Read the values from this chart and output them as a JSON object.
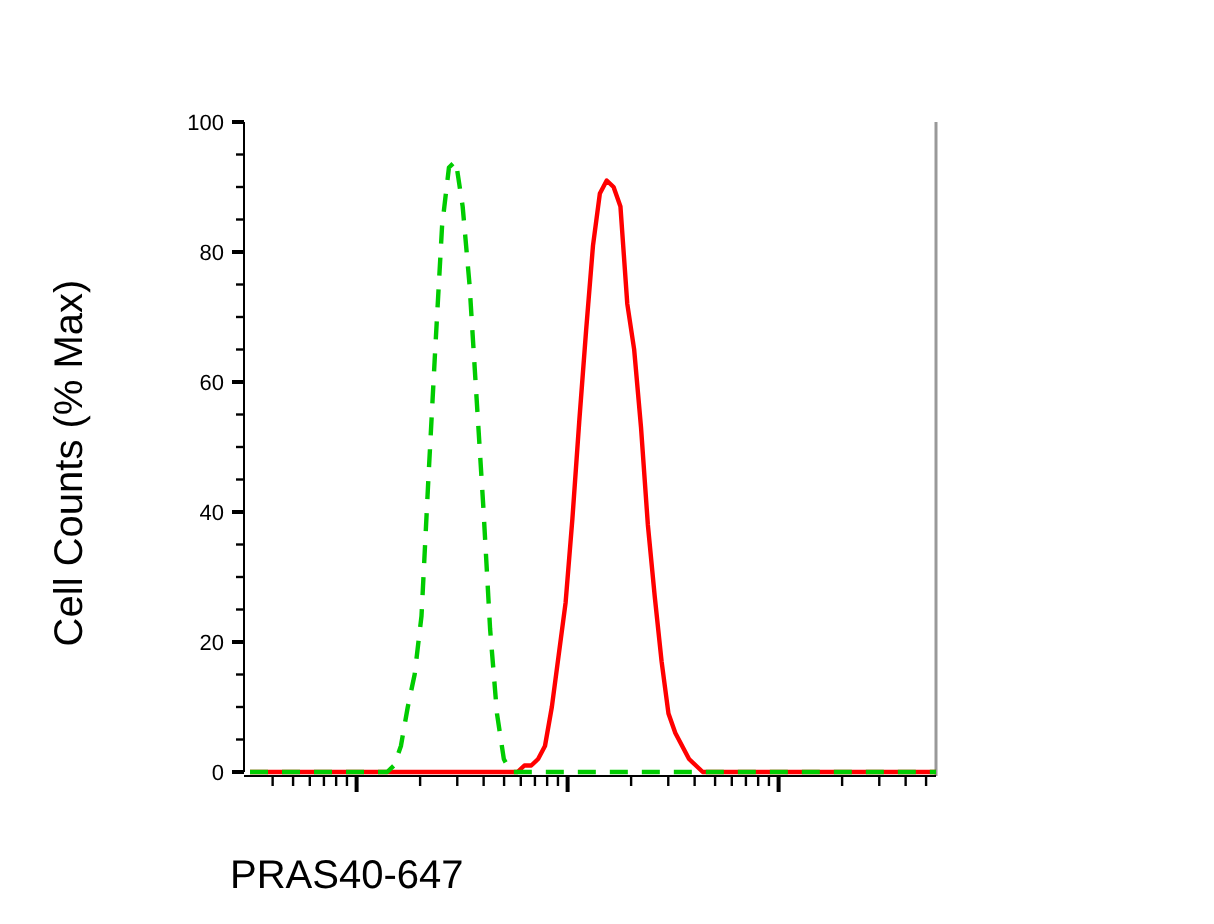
{
  "chart_data": {
    "type": "line",
    "xlabel": "PRAS40-647",
    "ylabel": "Cell Counts (% Max)",
    "categories": [
      null,
      null,
      null,
      null,
      null,
      null,
      null,
      null,
      null,
      null,
      null,
      null,
      null,
      null,
      null,
      null,
      null,
      null,
      null,
      null,
      null,
      null,
      null,
      null,
      null,
      null,
      null,
      null,
      null,
      null,
      null,
      null,
      null,
      null,
      null,
      null,
      null,
      null,
      null,
      null,
      null,
      null,
      null,
      null,
      null,
      null,
      null,
      null,
      null,
      null,
      null,
      null,
      null,
      null,
      null,
      null,
      null,
      null,
      null,
      null,
      null,
      null,
      null,
      null,
      null,
      null,
      null,
      null,
      null,
      null,
      null,
      null,
      null,
      null,
      null,
      null,
      null,
      null,
      null,
      null,
      null,
      null,
      null,
      null,
      null,
      null,
      null,
      null,
      null,
      null,
      null,
      null,
      null,
      null,
      null,
      null,
      null,
      null,
      null,
      null,
      null
    ],
    "series": [
      {
        "color": "#00cc00",
        "line_style": "dashed",
        "values": [
          0,
          0,
          0,
          0,
          0,
          0,
          0,
          0,
          0,
          0,
          0,
          0,
          0,
          0,
          0,
          0,
          0,
          0,
          0,
          0,
          0,
          1,
          4,
          10,
          15,
          24,
          45,
          65,
          84,
          93,
          94,
          87,
          75,
          58,
          41,
          22,
          9,
          2,
          0,
          0,
          0,
          0,
          0,
          0,
          0,
          0,
          0,
          0,
          0,
          0,
          0,
          0,
          0,
          0,
          0,
          0,
          0,
          0,
          0,
          0,
          0,
          0,
          0,
          0,
          0,
          0,
          0,
          0,
          0,
          0,
          0,
          0,
          0,
          0,
          0,
          0,
          0,
          0,
          0,
          0,
          0,
          0,
          0,
          0,
          0,
          0,
          0,
          0,
          0,
          0,
          0,
          0,
          0,
          0,
          0,
          0,
          0,
          0,
          0,
          0,
          0
        ]
      },
      {
        "color": "#ff0000",
        "line_style": "solid",
        "values": [
          0,
          0,
          0,
          0,
          0,
          0,
          0,
          0,
          0,
          0,
          0,
          0,
          0,
          0,
          0,
          0,
          0,
          0,
          0,
          0,
          0,
          0,
          0,
          0,
          0,
          0,
          0,
          0,
          0,
          0,
          0,
          0,
          0,
          0,
          0,
          0,
          0,
          0,
          0,
          0,
          1,
          1,
          2,
          4,
          10,
          18,
          26,
          39,
          54,
          68,
          81,
          89,
          91,
          90,
          87,
          72,
          65,
          53,
          38,
          27,
          17,
          9,
          6,
          4,
          2,
          1,
          0,
          0,
          0,
          0,
          0,
          0,
          0,
          0,
          0,
          0,
          0,
          0,
          0,
          0,
          0,
          0,
          0,
          0,
          0,
          0,
          0,
          0,
          0,
          0,
          0,
          0,
          0,
          0,
          0,
          0,
          0,
          0,
          0,
          0,
          0
        ]
      }
    ],
    "ylim": [
      0,
      100
    ],
    "yticks": [
      0,
      {
        "value": 5,
        "label": null
      },
      {
        "value": 10,
        "label": null
      },
      {
        "value": 15,
        "label": null
      },
      20,
      {
        "value": 25,
        "label": null
      },
      {
        "value": 30,
        "label": null
      },
      {
        "value": 35,
        "label": null
      },
      40,
      {
        "value": 45,
        "label": null
      },
      {
        "value": 50,
        "label": null
      },
      {
        "value": 55,
        "label": null
      },
      60,
      {
        "value": 65,
        "label": null
      },
      {
        "value": 70,
        "label": null
      },
      {
        "value": 75,
        "label": null
      },
      80,
      {
        "value": 85,
        "label": null
      },
      {
        "value": 90,
        "label": null
      },
      {
        "value": 95,
        "label": null
      },
      100
    ],
    "tick_labels": "y",
    "grid": false
  }
}
